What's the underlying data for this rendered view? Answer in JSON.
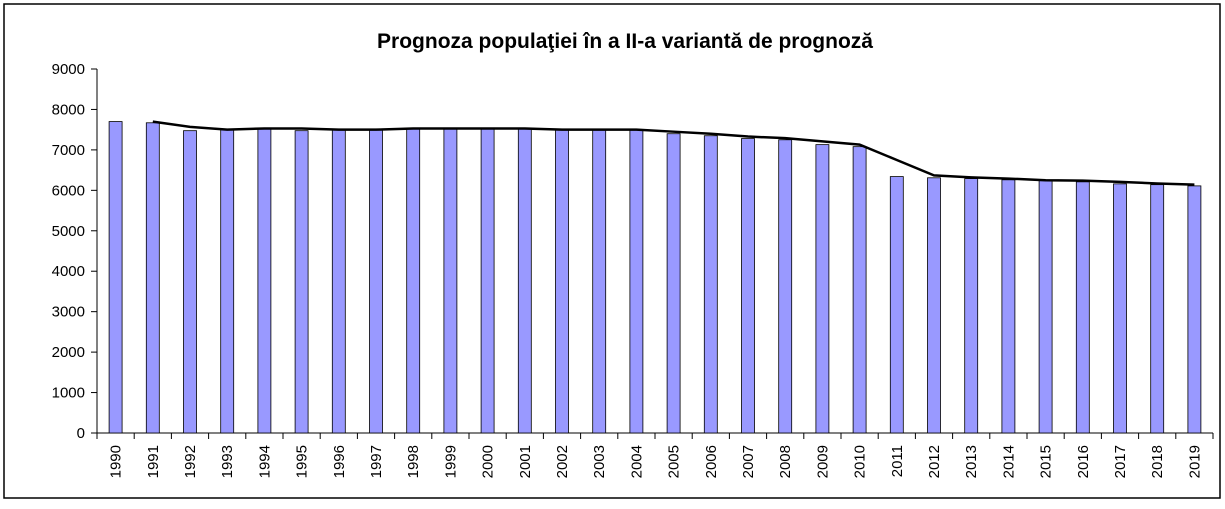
{
  "chart_data": {
    "type": "bar-line",
    "title": "Prognoza populaţiei în a II-a variantă de prognoză",
    "categories": [
      "1990",
      "1991",
      "1992",
      "1993",
      "1994",
      "1995",
      "1996",
      "1997",
      "1998",
      "1999",
      "2000",
      "2001",
      "2002",
      "2003",
      "2004",
      "2005",
      "2006",
      "2007",
      "2008",
      "2009",
      "2010",
      "2011",
      "2012",
      "2013",
      "2014",
      "2015",
      "2016",
      "2017",
      "2018",
      "2019"
    ],
    "series": [
      {
        "type": "bar",
        "color": "#9999ff",
        "values": [
          7700,
          7670,
          7475,
          7500,
          7525,
          7475,
          7500,
          7500,
          7525,
          7525,
          7525,
          7525,
          7500,
          7500,
          7500,
          7400,
          7350,
          7280,
          7250,
          7130,
          7080,
          6340,
          6310,
          6290,
          6260,
          6240,
          6210,
          6160,
          6140,
          6110
        ]
      },
      {
        "type": "line",
        "color": "#000000",
        "values": [
          null,
          7700,
          7570,
          7500,
          7530,
          7530,
          7500,
          7500,
          7530,
          7530,
          7530,
          7530,
          7500,
          7500,
          7500,
          7450,
          7400,
          7330,
          7290,
          7210,
          7130,
          6750,
          6370,
          6320,
          6290,
          6250,
          6240,
          6210,
          6170,
          6140
        ]
      }
    ],
    "ylim": [
      0,
      9000
    ],
    "yticks": [
      0,
      1000,
      2000,
      3000,
      4000,
      5000,
      6000,
      7000,
      8000,
      9000
    ]
  }
}
